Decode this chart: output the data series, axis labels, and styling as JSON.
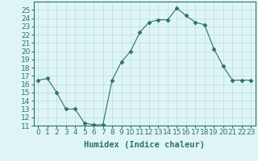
{
  "title": "",
  "xlabel": "Humidex (Indice chaleur)",
  "ylabel": "",
  "x": [
    0,
    1,
    2,
    3,
    4,
    5,
    6,
    7,
    8,
    9,
    10,
    11,
    12,
    13,
    14,
    15,
    16,
    17,
    18,
    19,
    20,
    21,
    22,
    23
  ],
  "y": [
    16.5,
    16.7,
    15.0,
    13.0,
    13.0,
    11.3,
    11.1,
    11.1,
    16.5,
    18.7,
    20.0,
    22.3,
    23.5,
    23.8,
    23.8,
    25.2,
    24.3,
    23.5,
    23.2,
    20.3,
    18.2,
    16.5,
    16.5,
    16.5
  ],
  "line_color": "#2d7070",
  "marker": "D",
  "marker_size": 2.5,
  "bg_color": "#dff5f5",
  "grid_color": "#b8dede",
  "ylim": [
    11,
    26
  ],
  "yticks": [
    11,
    12,
    13,
    14,
    15,
    16,
    17,
    18,
    19,
    20,
    21,
    22,
    23,
    24,
    25
  ],
  "xlim": [
    -0.5,
    23.5
  ],
  "xticks": [
    0,
    1,
    2,
    3,
    4,
    5,
    6,
    7,
    8,
    9,
    10,
    11,
    12,
    13,
    14,
    15,
    16,
    17,
    18,
    19,
    20,
    21,
    22,
    23
  ],
  "xlabel_fontsize": 7.5,
  "tick_fontsize": 6.5
}
